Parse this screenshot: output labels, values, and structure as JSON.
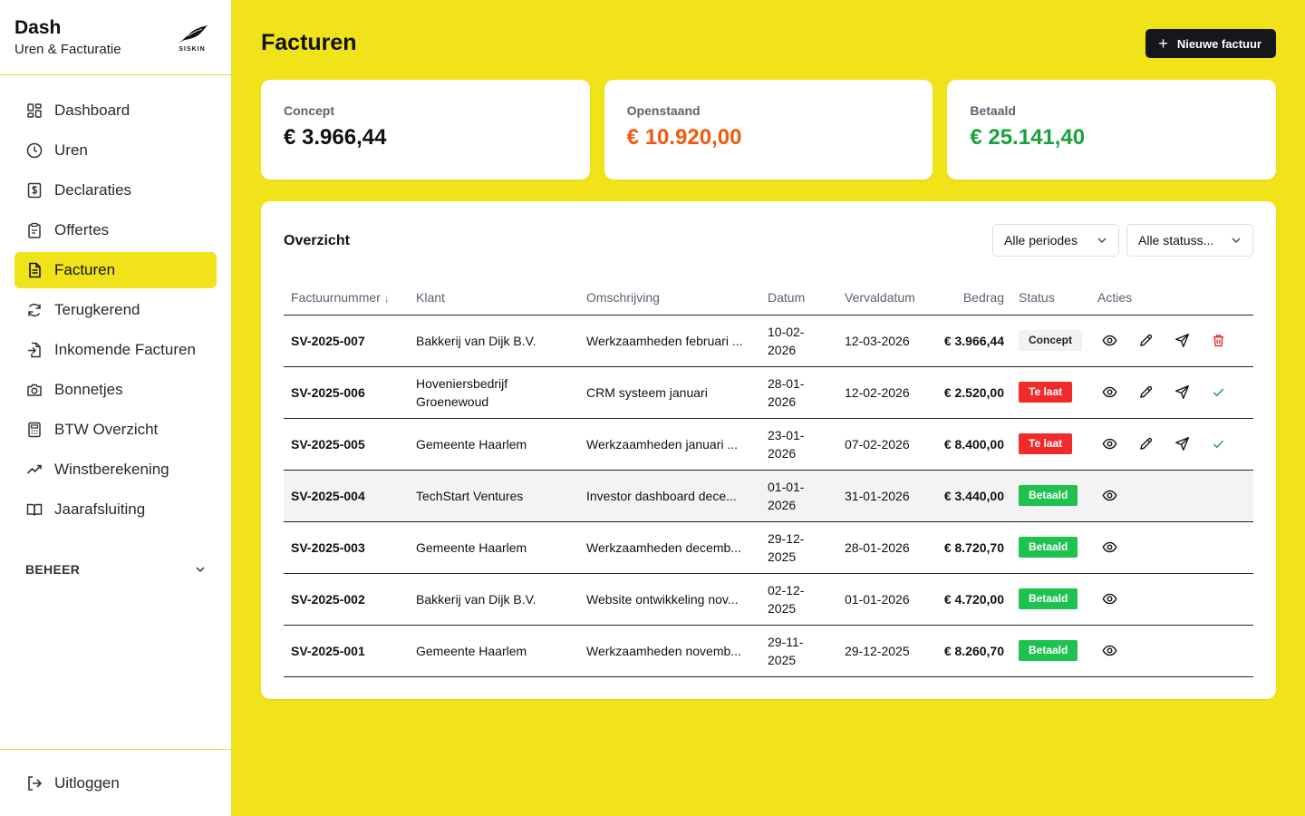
{
  "brand": {
    "title": "Dash",
    "subtitle": "Uren & Facturatie",
    "logo_text": "SISKIN"
  },
  "sidebar": {
    "items": [
      {
        "label": "Dashboard",
        "icon": "dashboard-icon"
      },
      {
        "label": "Uren",
        "icon": "clock-icon"
      },
      {
        "label": "Declaraties",
        "icon": "receipt-dollar-icon"
      },
      {
        "label": "Offertes",
        "icon": "clipboard-icon"
      },
      {
        "label": "Facturen",
        "icon": "document-icon",
        "active": true
      },
      {
        "label": "Terugkerend",
        "icon": "refresh-icon"
      },
      {
        "label": "Inkomende Facturen",
        "icon": "file-import-icon"
      },
      {
        "label": "Bonnetjes",
        "icon": "camera-icon"
      },
      {
        "label": "BTW Overzicht",
        "icon": "calculator-icon"
      },
      {
        "label": "Winstberekening",
        "icon": "trending-up-icon"
      },
      {
        "label": "Jaarafsluiting",
        "icon": "book-icon"
      }
    ],
    "section_label": "BEHEER",
    "logout_label": "Uitloggen"
  },
  "header": {
    "title": "Facturen",
    "new_button": "Nieuwe factuur"
  },
  "stats": [
    {
      "label": "Concept",
      "value": "€ 3.966,44",
      "color": "#111111"
    },
    {
      "label": "Openstaand",
      "value": "€ 10.920,00",
      "color": "#f2590c"
    },
    {
      "label": "Betaald",
      "value": "€ 25.141,40",
      "color": "#17a33b"
    }
  ],
  "overview": {
    "title": "Overzicht",
    "filters": {
      "period": "Alle periodes",
      "status": "Alle statuss..."
    },
    "columns": [
      "Factuurnummer",
      "Klant",
      "Omschrijving",
      "Datum",
      "Vervaldatum",
      "Bedrag",
      "Status",
      "Acties"
    ],
    "rows": [
      {
        "nr": "SV-2025-007",
        "klant": "Bakkerij van Dijk B.V.",
        "omschrijving": "Werkzaamheden februari ...",
        "datum": "10-02-2026",
        "verval": "12-03-2026",
        "bedrag": "€ 3.966,44",
        "status": "Concept",
        "status_type": "concept",
        "actions": [
          "view",
          "edit",
          "send",
          "delete"
        ]
      },
      {
        "nr": "SV-2025-006",
        "klant": "Hoveniersbedrijf Groenewoud",
        "omschrijving": "CRM systeem januari",
        "datum": "28-01-2026",
        "verval": "12-02-2026",
        "bedrag": "€ 2.520,00",
        "status": "Te laat",
        "status_type": "late",
        "actions": [
          "view",
          "edit",
          "send",
          "paid"
        ]
      },
      {
        "nr": "SV-2025-005",
        "klant": "Gemeente Haarlem",
        "omschrijving": "Werkzaamheden januari ...",
        "datum": "23-01-2026",
        "verval": "07-02-2026",
        "bedrag": "€ 8.400,00",
        "status": "Te laat",
        "status_type": "late",
        "actions": [
          "view",
          "edit",
          "send",
          "paid"
        ]
      },
      {
        "nr": "SV-2025-004",
        "klant": "TechStart Ventures",
        "omschrijving": "Investor dashboard dece...",
        "datum": "01-01-2026",
        "verval": "31-01-2026",
        "bedrag": "€ 3.440,00",
        "status": "Betaald",
        "status_type": "paid",
        "actions": [
          "view"
        ],
        "hover": true
      },
      {
        "nr": "SV-2025-003",
        "klant": "Gemeente Haarlem",
        "omschrijving": "Werkzaamheden decemb...",
        "datum": "29-12-2025",
        "verval": "28-01-2026",
        "bedrag": "€ 8.720,70",
        "status": "Betaald",
        "status_type": "paid",
        "actions": [
          "view"
        ]
      },
      {
        "nr": "SV-2025-002",
        "klant": "Bakkerij van Dijk B.V.",
        "omschrijving": "Website ontwikkeling nov...",
        "datum": "02-12-2025",
        "verval": "01-01-2026",
        "bedrag": "€ 4.720,00",
        "status": "Betaald",
        "status_type": "paid",
        "actions": [
          "view"
        ]
      },
      {
        "nr": "SV-2025-001",
        "klant": "Gemeente Haarlem",
        "omschrijving": "Werkzaamheden novemb...",
        "datum": "29-11-2025",
        "verval": "29-12-2025",
        "bedrag": "€ 8.260,70",
        "status": "Betaald",
        "status_type": "paid",
        "actions": [
          "view"
        ]
      }
    ]
  }
}
